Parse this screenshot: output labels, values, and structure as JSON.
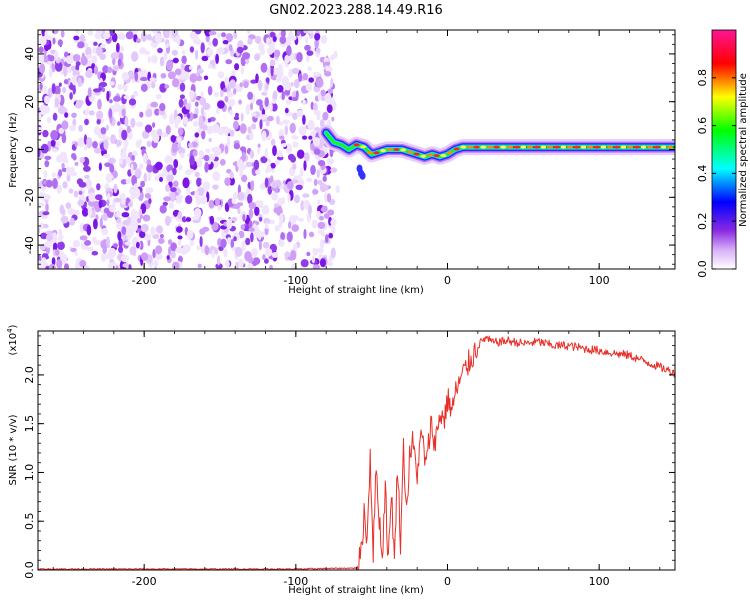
{
  "figure": {
    "title": "GN02.2023.288.14.49.R16"
  },
  "chart_data": [
    {
      "type": "heatmap",
      "name": "spectrogram",
      "xlabel": "Height of straight line (km)",
      "ylabel": "Frequency (Hz)",
      "xlim": [
        -270,
        150
      ],
      "ylim": [
        -50,
        50
      ],
      "xticks": [
        -200,
        -100,
        0,
        100
      ],
      "yticks": [
        -40,
        -20,
        0,
        20,
        40
      ],
      "noise_region_x": [
        -270,
        -75
      ],
      "signal_track": {
        "x": [
          -80,
          -75,
          -70,
          -65,
          -60,
          -55,
          -50,
          -45,
          -40,
          -35,
          -30,
          -25,
          -20,
          -15,
          -10,
          -5,
          0,
          5,
          10,
          20,
          40,
          60,
          80,
          100,
          120,
          140,
          150
        ],
        "y": [
          7,
          3,
          2,
          0,
          2,
          1,
          -2,
          -1,
          0,
          0,
          0,
          -1,
          -2,
          -3,
          -2,
          -3,
          -2,
          0,
          1,
          1,
          1,
          1,
          1,
          1,
          1,
          1,
          1
        ]
      },
      "colorbar": {
        "label": "Normalized spectral amplitude",
        "range": [
          0,
          1
        ],
        "ticks": [
          0.0,
          0.2,
          0.4,
          0.6,
          0.8
        ],
        "tick_labels": [
          "0.0",
          "0.2",
          "0.4",
          "0.6",
          "0.8"
        ],
        "colors": [
          "#ffffff",
          "#a020f0",
          "#0000ff",
          "#00ffff",
          "#00ff00",
          "#ffff00",
          "#ff0000",
          "#ff1493"
        ]
      }
    },
    {
      "type": "line",
      "name": "snr",
      "xlabel": "Height of straight line (km)",
      "ylabel": "SNR (10 * v/v)",
      "scale_note": "(x10",
      "scale_exp": "4",
      "scale_close": ")",
      "xlim": [
        -270,
        150
      ],
      "ylim": [
        0,
        2.45
      ],
      "xticks": [
        -200,
        -100,
        0,
        100
      ],
      "yticks": [
        0.0,
        0.5,
        1.0,
        1.5,
        2.0
      ],
      "ytick_labels": [
        "0.0",
        "0.5",
        "1.0",
        "1.5",
        "2.0"
      ],
      "color": "#e8302a",
      "series": [
        {
          "x": [
            -270,
            -100,
            -60,
            -57,
            -55,
            -53,
            -51,
            -49,
            -47,
            -45,
            -43,
            -41,
            -39,
            -37,
            -35,
            -33,
            -31,
            -29,
            -27,
            -25,
            -23,
            -20,
            -17,
            -14,
            -11,
            -8,
            -5,
            -2,
            0,
            3,
            6,
            10,
            15,
            20,
            25,
            30,
            40,
            50,
            60,
            70,
            80,
            90,
            100,
            110,
            120,
            130,
            140,
            150
          ],
          "y": [
            0.01,
            0.01,
            0.02,
            0.15,
            0.6,
            0.3,
            1.2,
            0.2,
            1.05,
            0.55,
            0.1,
            0.9,
            0.05,
            0.85,
            0.05,
            1.1,
            0.3,
            1.25,
            0.6,
            1.15,
            1.3,
            1.0,
            1.4,
            1.05,
            1.5,
            1.3,
            1.6,
            1.55,
            1.75,
            1.65,
            1.85,
            2.0,
            2.15,
            2.3,
            2.38,
            2.33,
            2.35,
            2.32,
            2.34,
            2.3,
            2.3,
            2.27,
            2.25,
            2.22,
            2.2,
            2.14,
            2.08,
            2.02
          ]
        }
      ]
    }
  ]
}
